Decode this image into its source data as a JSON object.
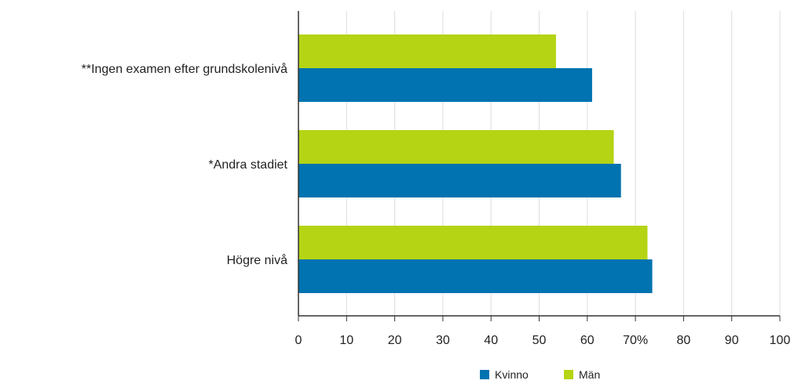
{
  "chart_data": {
    "type": "bar",
    "orientation": "horizontal",
    "categories": [
      "**Ingen examen efter grundskolenivå",
      "*Andra stadiet",
      "Högre nivå"
    ],
    "series": [
      {
        "name": "Män",
        "color": "#b4d414",
        "values": [
          53.5,
          65.5,
          72.5
        ]
      },
      {
        "name": "Kvinno",
        "color": "#0073b0",
        "values": [
          61,
          67,
          73.5
        ]
      }
    ],
    "x_ticks": [
      "0",
      "10",
      "20",
      "30",
      "40",
      "50",
      "60",
      "70%",
      "80",
      "90",
      "100"
    ],
    "xlim": [
      0,
      100
    ],
    "grid": true,
    "legend": {
      "position": "bottom-right",
      "items": [
        {
          "label": "Kvinno",
          "color": "#0073b0"
        },
        {
          "label": "Män",
          "color": "#b4d414"
        }
      ]
    }
  }
}
